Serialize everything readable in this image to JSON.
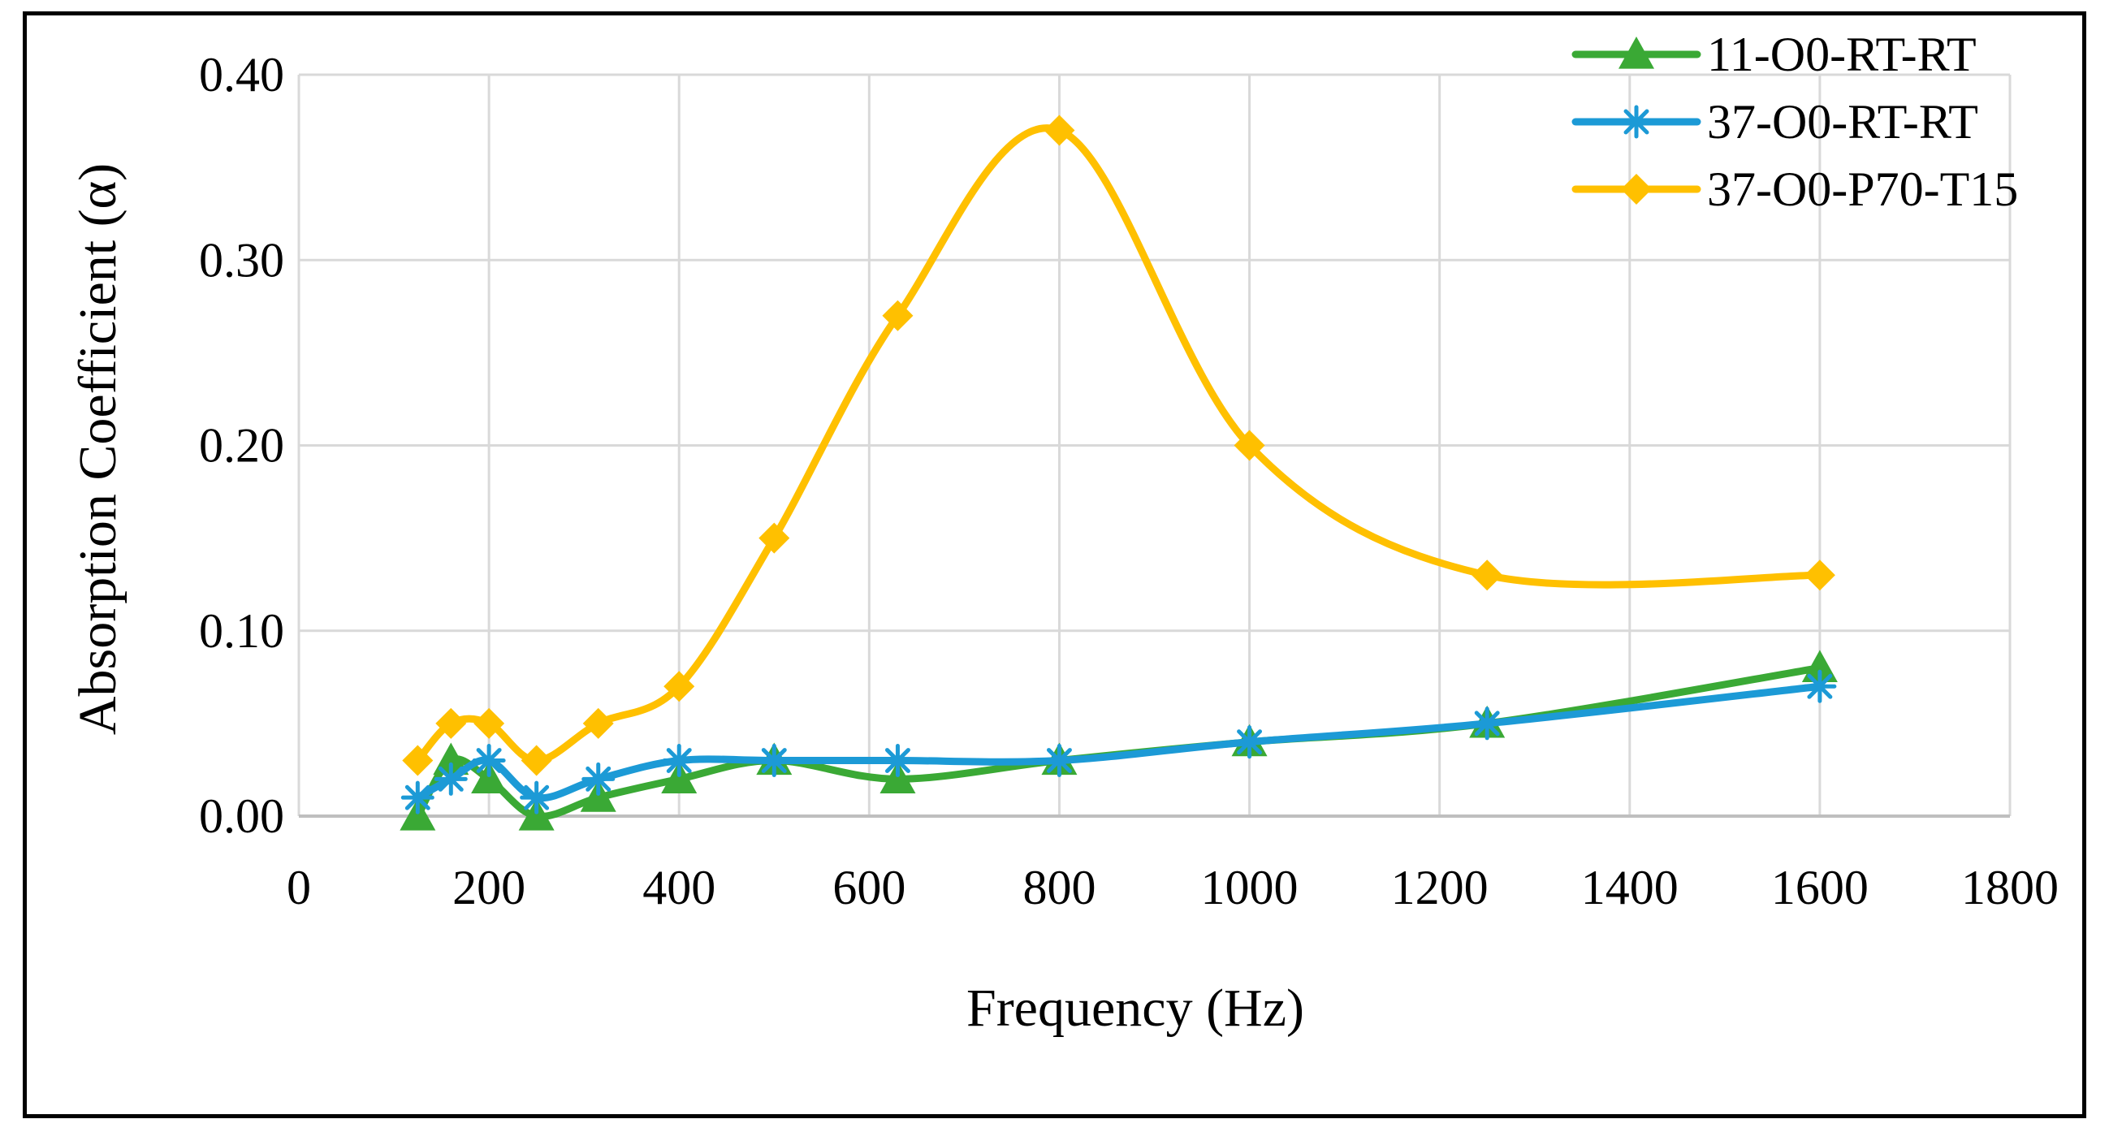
{
  "chart_data": {
    "type": "line",
    "title": "",
    "xlabel": "Frequency (Hz)",
    "ylabel": "Absorption Coefficient (α)",
    "xlim": [
      0,
      1800
    ],
    "ylim": [
      0,
      0.4
    ],
    "xticks": [
      "0",
      "200",
      "400",
      "600",
      "800",
      "1000",
      "1200",
      "1400",
      "1600",
      "1800"
    ],
    "yticks": [
      "0.00",
      "0.10",
      "0.20",
      "0.30",
      "0.40"
    ],
    "grid": true,
    "legend_position": "top-right",
    "x": [
      125,
      160,
      200,
      250,
      315,
      400,
      500,
      630,
      800,
      1000,
      1250,
      1600
    ],
    "series": [
      {
        "name": "11-O0-RT-RT",
        "marker": "triangle",
        "color": "#3aa935",
        "values": [
          0.0,
          0.03,
          0.02,
          0.0,
          0.01,
          0.02,
          0.03,
          0.02,
          0.03,
          0.04,
          0.05,
          0.08
        ]
      },
      {
        "name": "37-O0-RT-RT",
        "marker": "asterisk",
        "color": "#1c9ad6",
        "values": [
          0.01,
          0.02,
          0.03,
          0.01,
          0.02,
          0.03,
          0.03,
          0.03,
          0.03,
          0.04,
          0.05,
          0.07
        ]
      },
      {
        "name": "37-O0-P70-T15",
        "marker": "diamond",
        "color": "#ffc000",
        "values": [
          0.03,
          0.05,
          0.05,
          0.03,
          0.05,
          0.07,
          0.15,
          0.27,
          0.37,
          0.2,
          0.13,
          0.13
        ]
      }
    ]
  }
}
